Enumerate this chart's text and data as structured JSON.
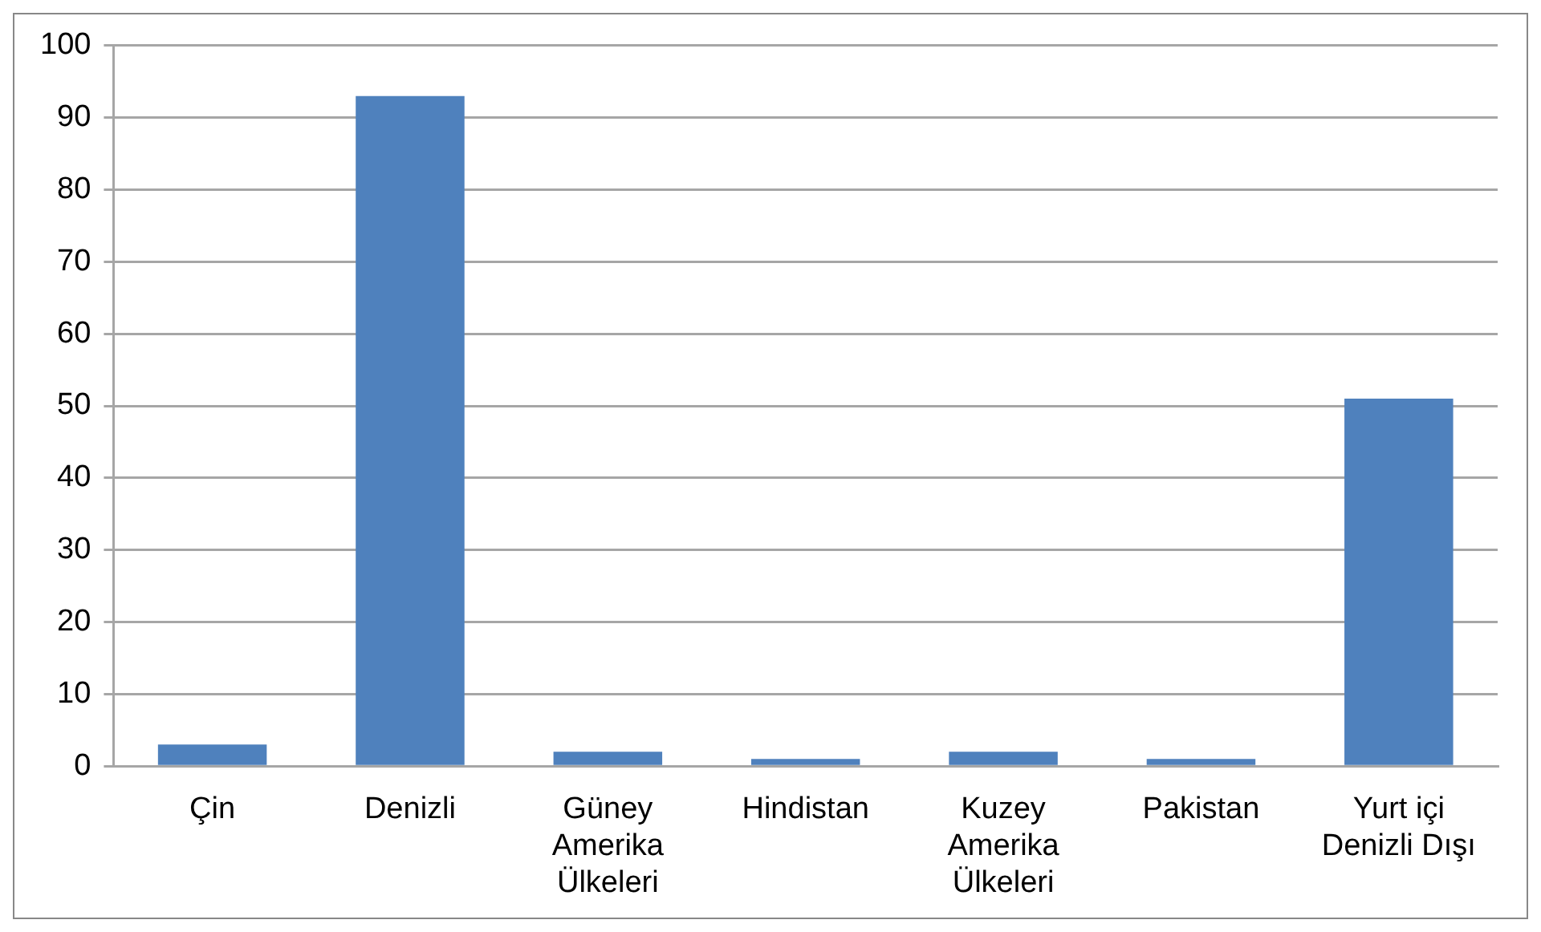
{
  "chart_data": {
    "type": "bar",
    "categories": [
      "Çin",
      "Denizli",
      "Güney Amerika Ülkeleri",
      "Hindistan",
      "Kuzey Amerika Ülkeleri",
      "Pakistan",
      "Yurt içi Denizli Dışı"
    ],
    "values": [
      3,
      93,
      2,
      1,
      2,
      1,
      51
    ],
    "color": "#4f81bd",
    "ylim": [
      0,
      100
    ],
    "yticks": [
      0,
      10,
      20,
      30,
      40,
      50,
      60,
      70,
      80,
      90,
      100
    ],
    "grid": "y",
    "legend": false
  }
}
